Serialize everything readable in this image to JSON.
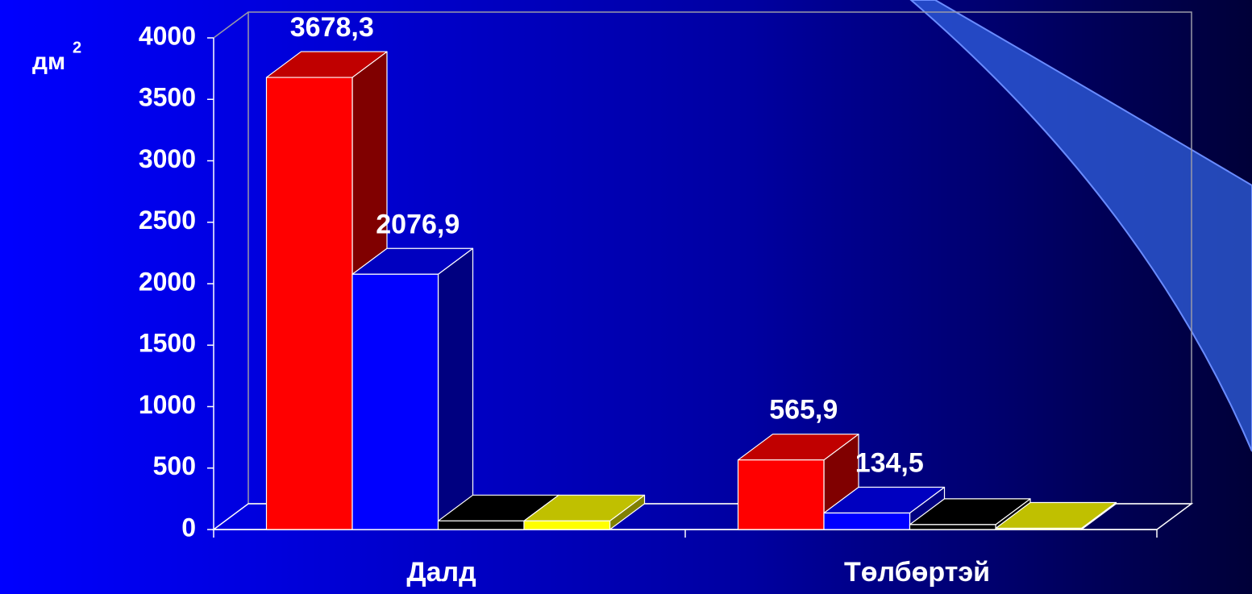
{
  "chart_data": {
    "type": "bar3d",
    "y_label": "дм",
    "y_label_power": "2",
    "categories": [
      "Далд",
      "Төлбөртэй"
    ],
    "series": [
      {
        "color": "#ff0000",
        "top": "#c00000",
        "side": "#800000",
        "values": [
          3678.3,
          565.9
        ],
        "value_labels": [
          "3678,3",
          "565,9"
        ]
      },
      {
        "color": "#0000ff",
        "top": "#0000c0",
        "side": "#000080",
        "values": [
          2076.9,
          134.5
        ],
        "value_labels": [
          "2076,9",
          "134,5"
        ]
      },
      {
        "color": "#000000",
        "top": "#000000",
        "side": "#000000",
        "values": [
          70,
          40
        ]
      },
      {
        "color": "#ffff00",
        "top": "#c0c000",
        "side": "#808000",
        "values": [
          70,
          10
        ]
      }
    ],
    "ylim": [
      0,
      4000
    ],
    "yticks": [
      0,
      500,
      1000,
      1500,
      2000,
      2500,
      3000,
      3500,
      4000
    ]
  }
}
